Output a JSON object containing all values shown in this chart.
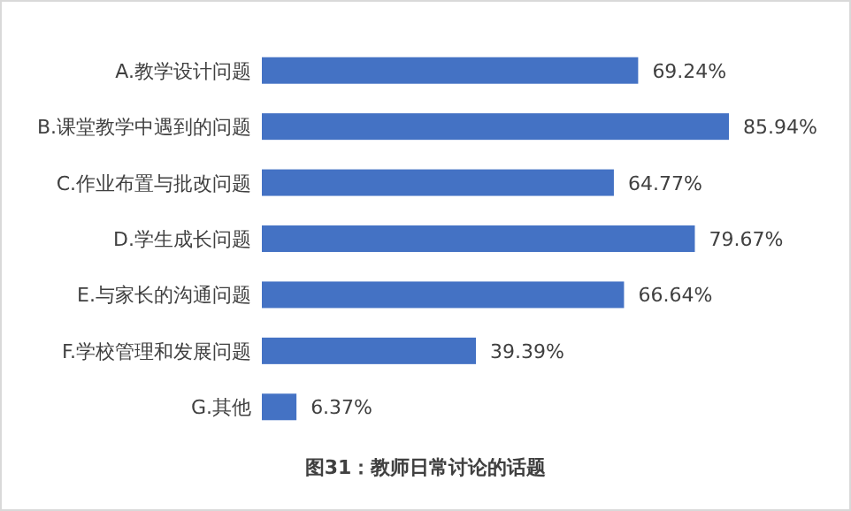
{
  "chart_data": {
    "type": "bar",
    "orientation": "horizontal",
    "title": "图31：教师日常讨论的话题",
    "categories": [
      "A.教学设计问题",
      "B.课堂教学中遇到的问题",
      "C.作业布置与批改问题",
      "D.学生成长问题",
      "E.与家长的沟通问题",
      "F.学校管理和发展问题",
      "G.其他"
    ],
    "values": [
      69.24,
      85.94,
      64.77,
      79.67,
      66.64,
      39.39,
      6.37
    ],
    "value_labels": [
      "69.24%",
      "85.94%",
      "64.77%",
      "79.67%",
      "66.64%",
      "39.39%",
      "6.37%"
    ],
    "color": "#4472c4"
  }
}
